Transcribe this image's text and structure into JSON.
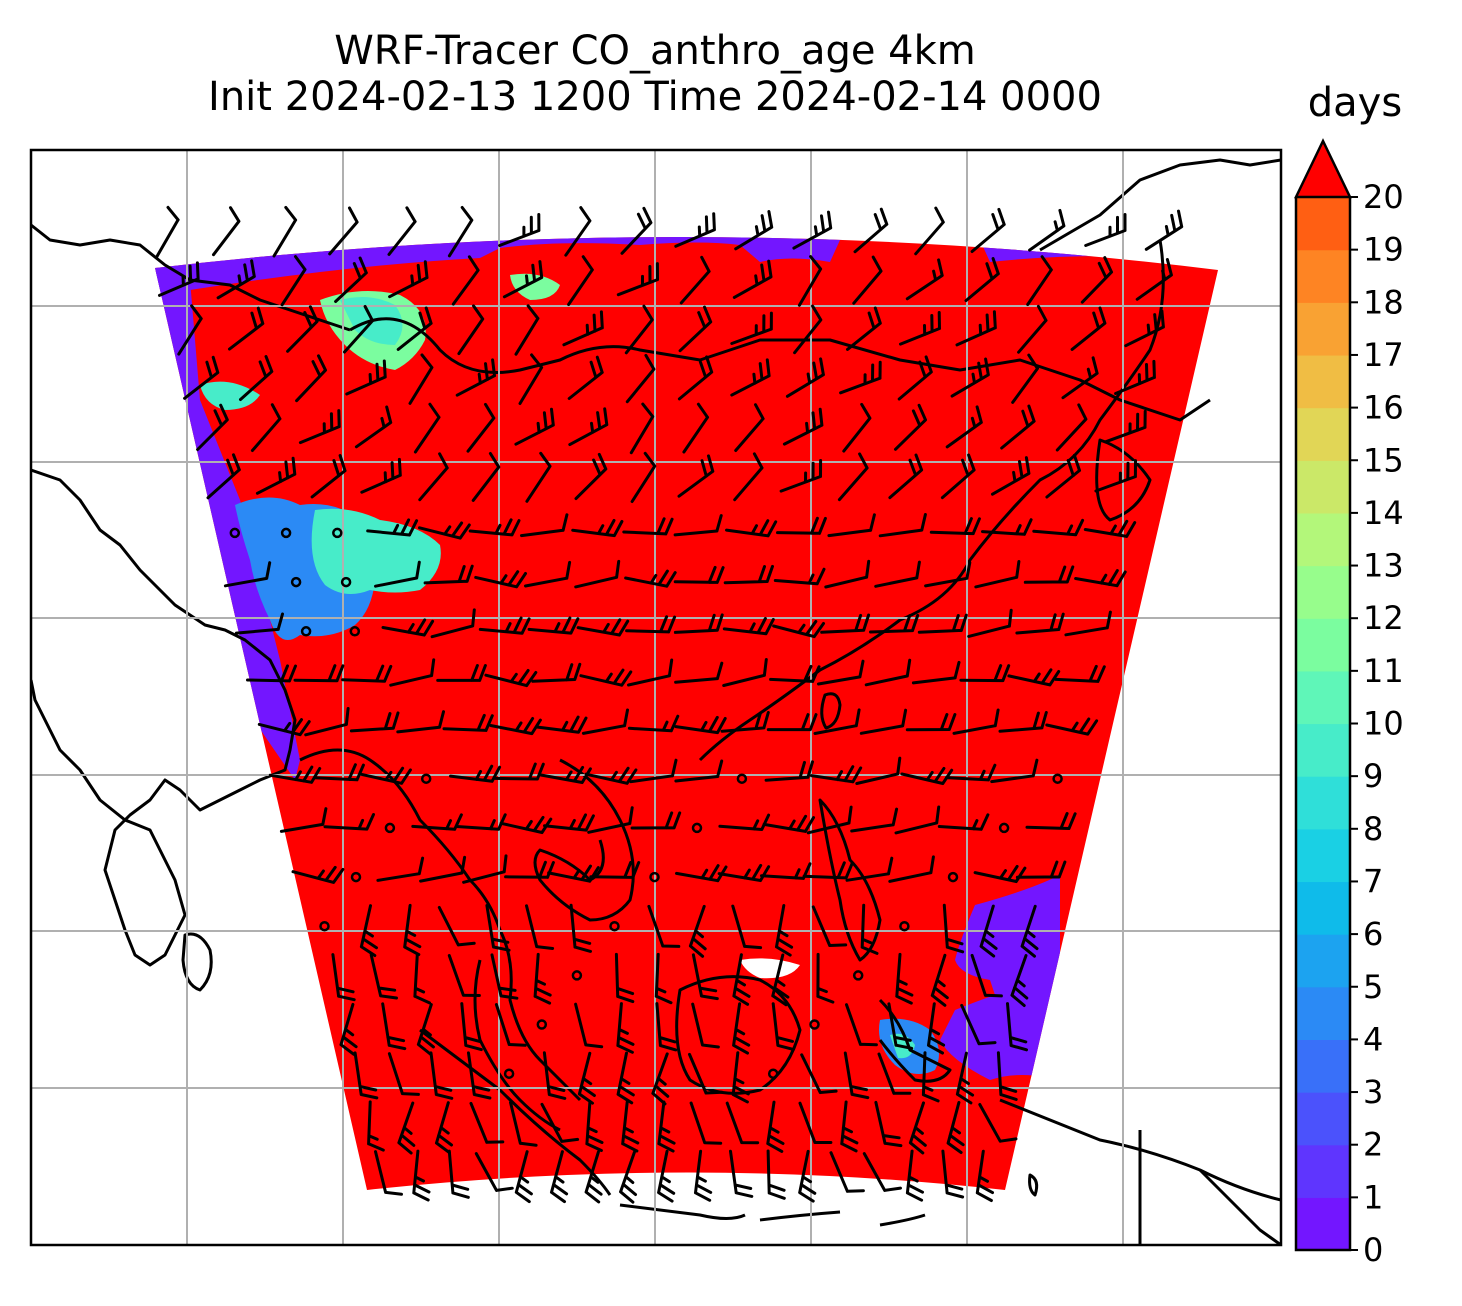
{
  "title": {
    "line1": "WRF-Tracer CO_anthro_age 4km",
    "line2": "Init 2024-02-13 1200 Time 2024-02-14 0000"
  },
  "colorbar": {
    "label": "days",
    "ticks": [
      "0",
      "1",
      "2",
      "3",
      "4",
      "5",
      "6",
      "7",
      "8",
      "9",
      "10",
      "11",
      "12",
      "13",
      "14",
      "15",
      "16",
      "17",
      "18",
      "19",
      "20"
    ],
    "extend": "max",
    "colors": [
      "#7316ff",
      "#5f35fe",
      "#4b52fc",
      "#3970f9",
      "#2b8af5",
      "#1ca3f0",
      "#0fbbea",
      "#1ad0e4",
      "#2fdfd9",
      "#47ecc9",
      "#5ff6b8",
      "#7bfd9f",
      "#97fd8c",
      "#b3f77a",
      "#cbe868",
      "#e1d656",
      "#f0bd44",
      "#f9a233",
      "#fe8423",
      "#ff5f13",
      "#ff3a05",
      "#ff0000"
    ]
  },
  "field": {
    "background_value_days": 20,
    "background_color": "#ff0000",
    "young_air_color": "#7316ff"
  },
  "grid": {
    "visible": true,
    "color": "#b0b0b0"
  },
  "wind_barbs": {
    "color": "#000000",
    "calm_symbol": "circle"
  }
}
